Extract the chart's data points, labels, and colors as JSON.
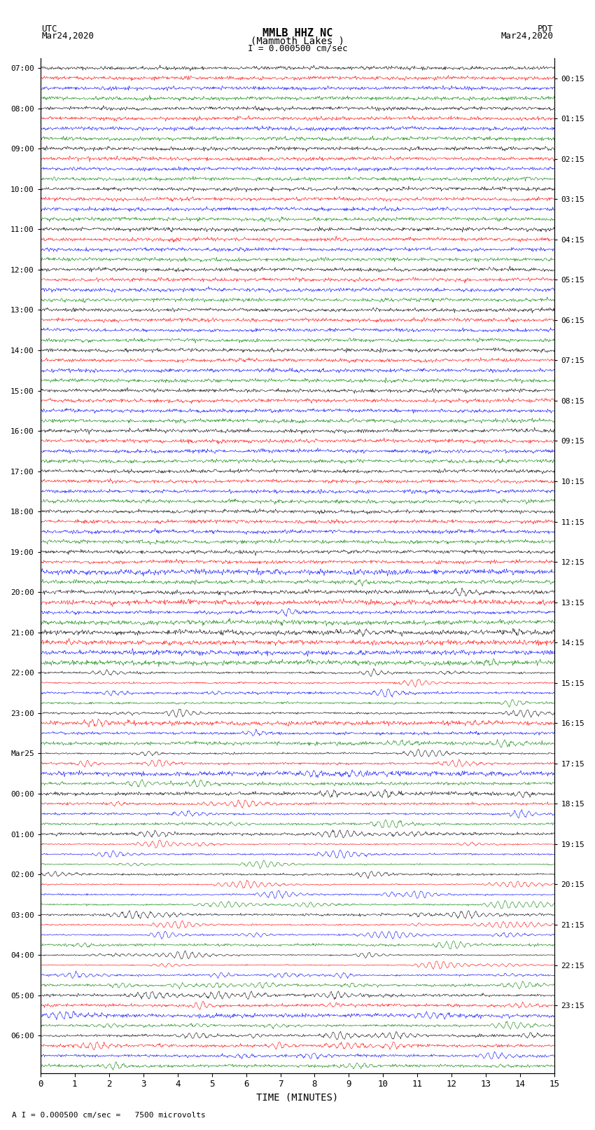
{
  "title_line1": "MMLB HHZ NC",
  "title_line2": "(Mammoth Lakes )",
  "scale_text": "I = 0.000500 cm/sec",
  "bottom_scale_text": "A I = 0.000500 cm/sec =   7500 microvolts",
  "utc_label": "UTC",
  "utc_date": "Mar24,2020",
  "pdt_label": "PDT",
  "pdt_date": "Mar24,2020",
  "xlabel": "TIME (MINUTES)",
  "left_times": [
    "07:00",
    "08:00",
    "09:00",
    "10:00",
    "11:00",
    "12:00",
    "13:00",
    "14:00",
    "15:00",
    "16:00",
    "17:00",
    "18:00",
    "19:00",
    "20:00",
    "21:00",
    "22:00",
    "23:00",
    "Mar25",
    "00:00",
    "01:00",
    "02:00",
    "03:00",
    "04:00",
    "05:00",
    "06:00"
  ],
  "right_times": [
    "00:15",
    "01:15",
    "02:15",
    "03:15",
    "04:15",
    "05:15",
    "06:15",
    "07:15",
    "08:15",
    "09:15",
    "10:15",
    "11:15",
    "12:15",
    "13:15",
    "14:15",
    "15:15",
    "16:15",
    "17:15",
    "18:15",
    "19:15",
    "20:15",
    "21:15",
    "22:15",
    "23:15"
  ],
  "n_rows": 100,
  "n_samples": 900,
  "colors_cycle": [
    "black",
    "red",
    "blue",
    "green"
  ],
  "bg_color": "white",
  "line_width": 0.4,
  "figsize": [
    8.5,
    16.13
  ],
  "dpi": 100,
  "noise_base": 0.08,
  "seismic_seed": 42
}
